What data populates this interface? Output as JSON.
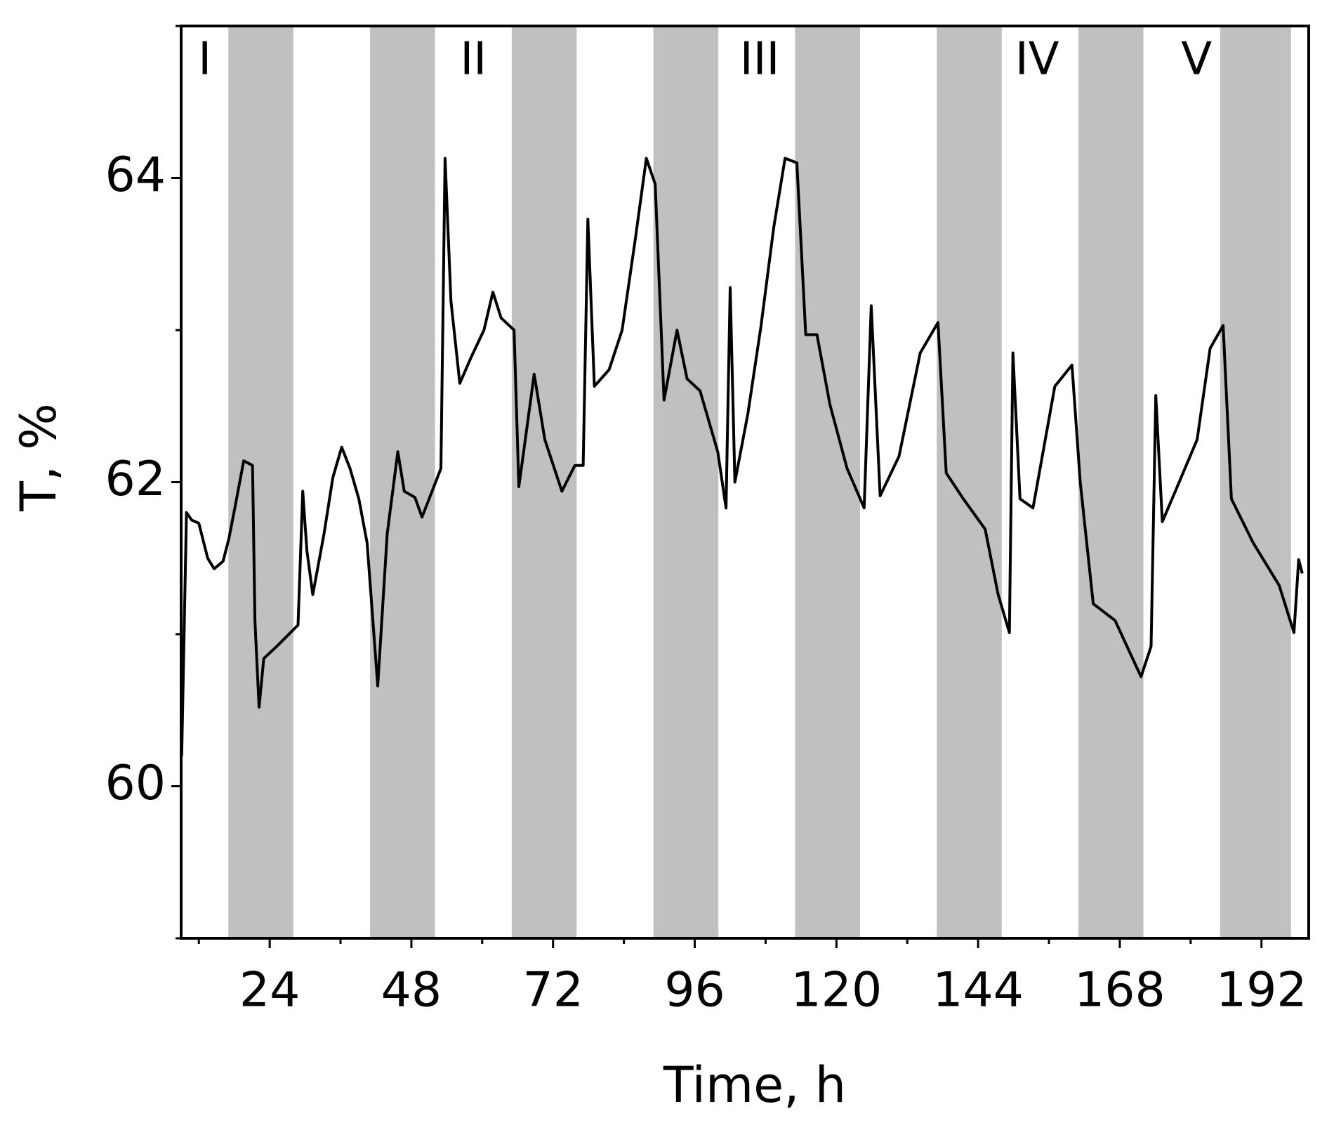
{
  "chart_data": {
    "type": "line",
    "xlabel": "Time, h",
    "ylabel": "T, %",
    "xlim": [
      9,
      200
    ],
    "ylim": [
      59,
      65
    ],
    "xticks": [
      24,
      48,
      72,
      96,
      120,
      144,
      168,
      192
    ],
    "xticks_minor": [
      12,
      36,
      60,
      84,
      108,
      132,
      156,
      180
    ],
    "yticks": [
      60,
      62,
      64
    ],
    "yticks_minor": [
      59,
      61,
      63,
      65
    ],
    "bands": [
      [
        17,
        28
      ],
      [
        41,
        52
      ],
      [
        65,
        76
      ],
      [
        89,
        100
      ],
      [
        113,
        124
      ],
      [
        137,
        148
      ],
      [
        161,
        172
      ],
      [
        185,
        197
      ]
    ],
    "band_color": "#c0c0c0",
    "annotations": [
      {
        "text": "I",
        "x": 13
      },
      {
        "text": "II",
        "x": 58.5
      },
      {
        "text": "III",
        "x": 107
      },
      {
        "text": "IV",
        "x": 154
      },
      {
        "text": "V",
        "x": 181
      }
    ],
    "color": "#000000",
    "x": [
      9.1,
      9.9,
      10.8,
      12.0,
      13.5,
      14.6,
      16.1,
      17.1,
      18.1,
      19.6,
      21.1,
      21.5,
      22.2,
      23.0,
      25.2,
      28.8,
      29.6,
      30.3,
      31.3,
      33.2,
      34.7,
      36.2,
      37.6,
      39.1,
      40.5,
      42.3,
      43.9,
      45.7,
      46.8,
      48.6,
      49.8,
      51.5,
      53.0,
      53.7,
      54.7,
      56.2,
      58.1,
      60.3,
      61.8,
      63.2,
      65.4,
      66.2,
      67.3,
      68.8,
      70.6,
      73.5,
      75.7,
      77.1,
      77.9,
      79.0,
      81.5,
      83.7,
      85.9,
      87.8,
      89.3,
      90.8,
      93.0,
      94.7,
      96.9,
      99.9,
      101.3,
      102.0,
      102.8,
      105.0,
      107.2,
      109.4,
      111.3,
      113.3,
      114.8,
      116.7,
      118.9,
      121.8,
      124.7,
      125.9,
      127.4,
      130.6,
      134.2,
      137.2,
      138.6,
      141.5,
      145.2,
      147.4,
      149.3,
      149.9,
      151.1,
      153.3,
      157.0,
      159.9,
      161.3,
      163.5,
      167.2,
      171.6,
      173.3,
      174.1,
      175.2,
      177.4,
      181.1,
      183.3,
      185.5,
      186.9,
      190.6,
      195.0,
      197.5,
      198.3,
      198.9
    ],
    "values": [
      60.2,
      61.8,
      61.75,
      61.73,
      61.5,
      61.43,
      61.48,
      61.63,
      61.83,
      62.14,
      62.11,
      61.09,
      60.52,
      60.84,
      60.92,
      61.06,
      61.94,
      61.55,
      61.26,
      61.66,
      62.03,
      62.23,
      62.09,
      61.89,
      61.6,
      60.66,
      61.66,
      62.2,
      61.94,
      61.9,
      61.77,
      61.94,
      62.09,
      64.13,
      63.19,
      62.65,
      62.82,
      63.0,
      63.25,
      63.08,
      63.0,
      61.97,
      62.28,
      62.71,
      62.28,
      61.94,
      62.11,
      62.11,
      63.73,
      62.63,
      62.74,
      63.0,
      63.59,
      64.13,
      63.96,
      62.54,
      63.0,
      62.68,
      62.6,
      62.2,
      61.83,
      63.28,
      62.0,
      62.45,
      63.02,
      63.68,
      64.13,
      64.1,
      62.97,
      62.97,
      62.51,
      62.09,
      61.83,
      63.16,
      61.91,
      62.17,
      62.85,
      63.05,
      62.06,
      61.89,
      61.69,
      61.26,
      61.01,
      62.85,
      61.89,
      61.83,
      62.63,
      62.77,
      62.0,
      61.2,
      61.09,
      60.72,
      60.92,
      62.57,
      61.74,
      61.94,
      62.28,
      62.88,
      63.03,
      61.89,
      61.6,
      61.32,
      61.01,
      61.49,
      61.4
    ]
  }
}
